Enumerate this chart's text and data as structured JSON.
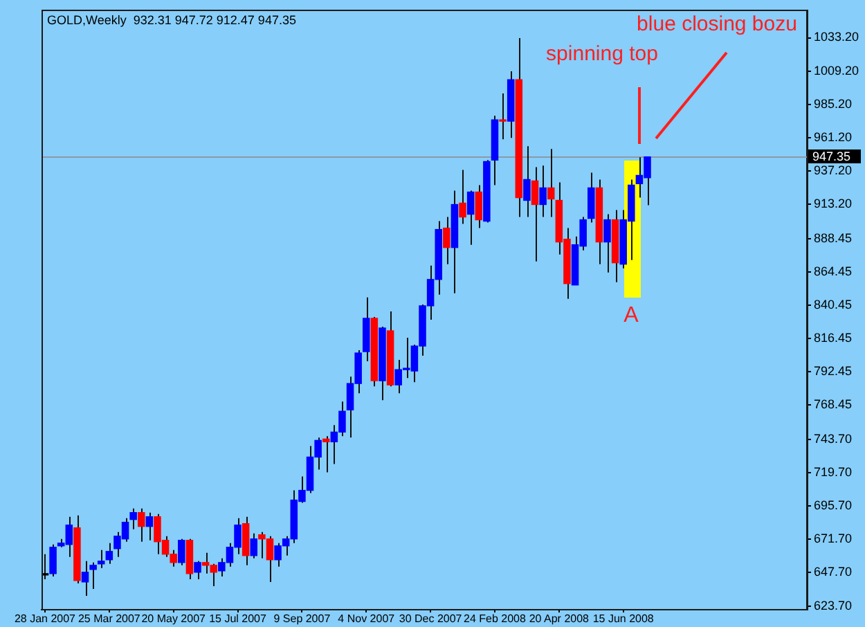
{
  "chart_data": {
    "type": "candlestick",
    "title": "GOLD,Weekly  932.31 947.72 912.47 947.35",
    "x": [
      "2007-01-28",
      "2007-02-04",
      "2007-02-11",
      "2007-02-18",
      "2007-02-25",
      "2007-03-04",
      "2007-03-11",
      "2007-03-18",
      "2007-03-25",
      "2007-04-01",
      "2007-04-08",
      "2007-04-15",
      "2007-04-22",
      "2007-04-29",
      "2007-05-06",
      "2007-05-13",
      "2007-05-20",
      "2007-05-27",
      "2007-06-03",
      "2007-06-10",
      "2007-06-17",
      "2007-06-24",
      "2007-07-01",
      "2007-07-08",
      "2007-07-15",
      "2007-07-22",
      "2007-07-29",
      "2007-08-05",
      "2007-08-12",
      "2007-08-19",
      "2007-08-26",
      "2007-09-02",
      "2007-09-09",
      "2007-09-16",
      "2007-09-23",
      "2007-09-30",
      "2007-10-07",
      "2007-10-14",
      "2007-10-21",
      "2007-10-28",
      "2007-11-04",
      "2007-11-11",
      "2007-11-18",
      "2007-11-25",
      "2007-12-02",
      "2007-12-09",
      "2007-12-16",
      "2007-12-23",
      "2007-12-30",
      "2008-01-06",
      "2008-01-13",
      "2008-01-20",
      "2008-01-27",
      "2008-02-03",
      "2008-02-10",
      "2008-02-17",
      "2008-02-24",
      "2008-03-02",
      "2008-03-09",
      "2008-03-16",
      "2008-03-23",
      "2008-03-30",
      "2008-04-06",
      "2008-04-13",
      "2008-04-20",
      "2008-04-27",
      "2008-05-04",
      "2008-05-11",
      "2008-05-18",
      "2008-05-25",
      "2008-06-01",
      "2008-06-08",
      "2008-06-15",
      "2008-06-22",
      "2008-06-29",
      "2008-07-06"
    ],
    "ohlc": [
      [
        646,
        661,
        643,
        646
      ],
      [
        647,
        668,
        645,
        666
      ],
      [
        667,
        672,
        666,
        669
      ],
      [
        668,
        688,
        659,
        682
      ],
      [
        680,
        689,
        640,
        642
      ],
      [
        641,
        656,
        631,
        648
      ],
      [
        650,
        655,
        636,
        653
      ],
      [
        654,
        664,
        651,
        656
      ],
      [
        657,
        669,
        654,
        663
      ],
      [
        665,
        677,
        659,
        674
      ],
      [
        672,
        687,
        670,
        684
      ],
      [
        686,
        694,
        679,
        691
      ],
      [
        691,
        694,
        670,
        681
      ],
      [
        681,
        691,
        671,
        688
      ],
      [
        688,
        690,
        661,
        670
      ],
      [
        671,
        674,
        659,
        661
      ],
      [
        661,
        664,
        652,
        655
      ],
      [
        655,
        672,
        653,
        671
      ],
      [
        671,
        672,
        643,
        647
      ],
      [
        648,
        656,
        643,
        655
      ],
      [
        655,
        662,
        647,
        653
      ],
      [
        653,
        654,
        638,
        648
      ],
      [
        649,
        658,
        645,
        655
      ],
      [
        655,
        669,
        652,
        666
      ],
      [
        666,
        687,
        661,
        682
      ],
      [
        683,
        688,
        653,
        660
      ],
      [
        660,
        676,
        658,
        672
      ],
      [
        675,
        677,
        658,
        672
      ],
      [
        672,
        674,
        641,
        657
      ],
      [
        657,
        669,
        652,
        667
      ],
      [
        667,
        674,
        660,
        672
      ],
      [
        672,
        707,
        669,
        700
      ],
      [
        699,
        717,
        698,
        707
      ],
      [
        707,
        739,
        705,
        731
      ],
      [
        731,
        745,
        722,
        743
      ],
      [
        744,
        746,
        720,
        742
      ],
      [
        742,
        754,
        726,
        749
      ],
      [
        749,
        771,
        746,
        764
      ],
      [
        765,
        789,
        745,
        784
      ],
      [
        784,
        808,
        777,
        806
      ],
      [
        807,
        846,
        800,
        831
      ],
      [
        831,
        832,
        782,
        786
      ],
      [
        786,
        825,
        772,
        824
      ],
      [
        822,
        836,
        782,
        783
      ],
      [
        783,
        801,
        777,
        794
      ],
      [
        794,
        817,
        788,
        795
      ],
      [
        793,
        812,
        785,
        811
      ],
      [
        811,
        841,
        804,
        840
      ],
      [
        840,
        869,
        830,
        859
      ],
      [
        859,
        901,
        848,
        895
      ],
      [
        896,
        904,
        870,
        882
      ],
      [
        882,
        923,
        849,
        913
      ],
      [
        914,
        938,
        899,
        904
      ],
      [
        906,
        923,
        884,
        922
      ],
      [
        922,
        927,
        896,
        902
      ],
      [
        901,
        945,
        900,
        944
      ],
      [
        945,
        977,
        927,
        974
      ],
      [
        974,
        993,
        960,
        973
      ],
      [
        973,
        1009,
        961,
        1003
      ],
      [
        1003,
        1033,
        904,
        918
      ],
      [
        916,
        955,
        904,
        931
      ],
      [
        930,
        940,
        872,
        913
      ],
      [
        913,
        941,
        904,
        925
      ],
      [
        925,
        953,
        904,
        917
      ],
      [
        916,
        929,
        877,
        886
      ],
      [
        888,
        896,
        845,
        856
      ],
      [
        855,
        890,
        855,
        884
      ],
      [
        883,
        904,
        880,
        902
      ],
      [
        903,
        936,
        900,
        925
      ],
      [
        925,
        931,
        870,
        886
      ],
      [
        886,
        906,
        864,
        902
      ],
      [
        902,
        909,
        857,
        871
      ],
      [
        870,
        909,
        867,
        902
      ],
      [
        901,
        931,
        873,
        927
      ],
      [
        928,
        947,
        918,
        934
      ],
      [
        932.31,
        947.72,
        912.47,
        947.35
      ]
    ],
    "colors": [
      "#000000",
      "#0000ff",
      "#0000ff",
      "#0000ff",
      "#ff0000",
      "#0000ff",
      "#0000ff",
      "#0000ff",
      "#0000ff",
      "#0000ff",
      "#0000ff",
      "#0000ff",
      "#ff0000",
      "#0000ff",
      "#ff0000",
      "#ff0000",
      "#ff0000",
      "#0000ff",
      "#ff0000",
      "#0000ff",
      "#ff0000",
      "#ff0000",
      "#0000ff",
      "#0000ff",
      "#0000ff",
      "#ff0000",
      "#0000ff",
      "#ff0000",
      "#ff0000",
      "#0000ff",
      "#0000ff",
      "#0000ff",
      "#0000ff",
      "#0000ff",
      "#0000ff",
      "#ff0000",
      "#0000ff",
      "#0000ff",
      "#0000ff",
      "#0000ff",
      "#0000ff",
      "#ff0000",
      "#0000ff",
      "#ff0000",
      "#0000ff",
      "#0000ff",
      "#0000ff",
      "#0000ff",
      "#0000ff",
      "#0000ff",
      "#ff0000",
      "#0000ff",
      "#ff0000",
      "#0000ff",
      "#ff0000",
      "#0000ff",
      "#0000ff",
      "#ff0000",
      "#0000ff",
      "#ff0000",
      "#0000ff",
      "#ff0000",
      "#0000ff",
      "#ff0000",
      "#ff0000",
      "#ff0000",
      "#0000ff",
      "#0000ff",
      "#0000ff",
      "#ff0000",
      "#0000ff",
      "#ff0000",
      "#0000ff",
      "#0000ff",
      "#0000ff",
      "#0000ff"
    ],
    "xlim": [
      "2007-01-25",
      "2008-11-22"
    ],
    "xticks": [
      {
        "value": "2007-01-28",
        "label": "28 Jan 2007"
      },
      {
        "value": "2007-03-25",
        "label": "25 Mar 2007"
      },
      {
        "value": "2007-05-20",
        "label": "20 May 2007"
      },
      {
        "value": "2007-07-15",
        "label": "15 Jul 2007"
      },
      {
        "value": "2007-09-09",
        "label": "9 Sep 2007"
      },
      {
        "value": "2007-11-04",
        "label": "4 Nov 2007"
      },
      {
        "value": "2007-12-30",
        "label": "30 Dec 2007"
      },
      {
        "value": "2008-02-24",
        "label": "24 Feb 2008"
      },
      {
        "value": "2008-04-20",
        "label": "20 Apr 2008"
      },
      {
        "value": "2008-06-15",
        "label": "15 Jun 2008"
      }
    ],
    "ylim": [
      621,
      1053
    ],
    "yticks": [
      {
        "value": 1033.2,
        "label": "1033.20"
      },
      {
        "value": 1009.2,
        "label": "1009.20"
      },
      {
        "value": 985.2,
        "label": "985.20"
      },
      {
        "value": 961.2,
        "label": "961.20"
      },
      {
        "value": 937.2,
        "label": "937.20"
      },
      {
        "value": 913.2,
        "label": "913.20"
      },
      888.45,
      864.45,
      840.45,
      816.45,
      792.45,
      768.45,
      {
        "value": 743.7,
        "label": "743.70"
      },
      {
        "value": 719.7,
        "label": "719.70"
      },
      {
        "value": 695.7,
        "label": "695.70"
      },
      {
        "value": 671.7,
        "label": "671.70"
      },
      {
        "value": 647.7,
        "label": "647.70"
      },
      {
        "value": 623.7,
        "label": "623.70"
      }
    ],
    "ref_lines": [
      {
        "axis": "y",
        "value": 947.35,
        "label": "947.35",
        "color": "#8d9aa6"
      }
    ],
    "annotations": [
      "spinning top",
      "blue closing bozu",
      "A"
    ],
    "grid": false
  }
}
